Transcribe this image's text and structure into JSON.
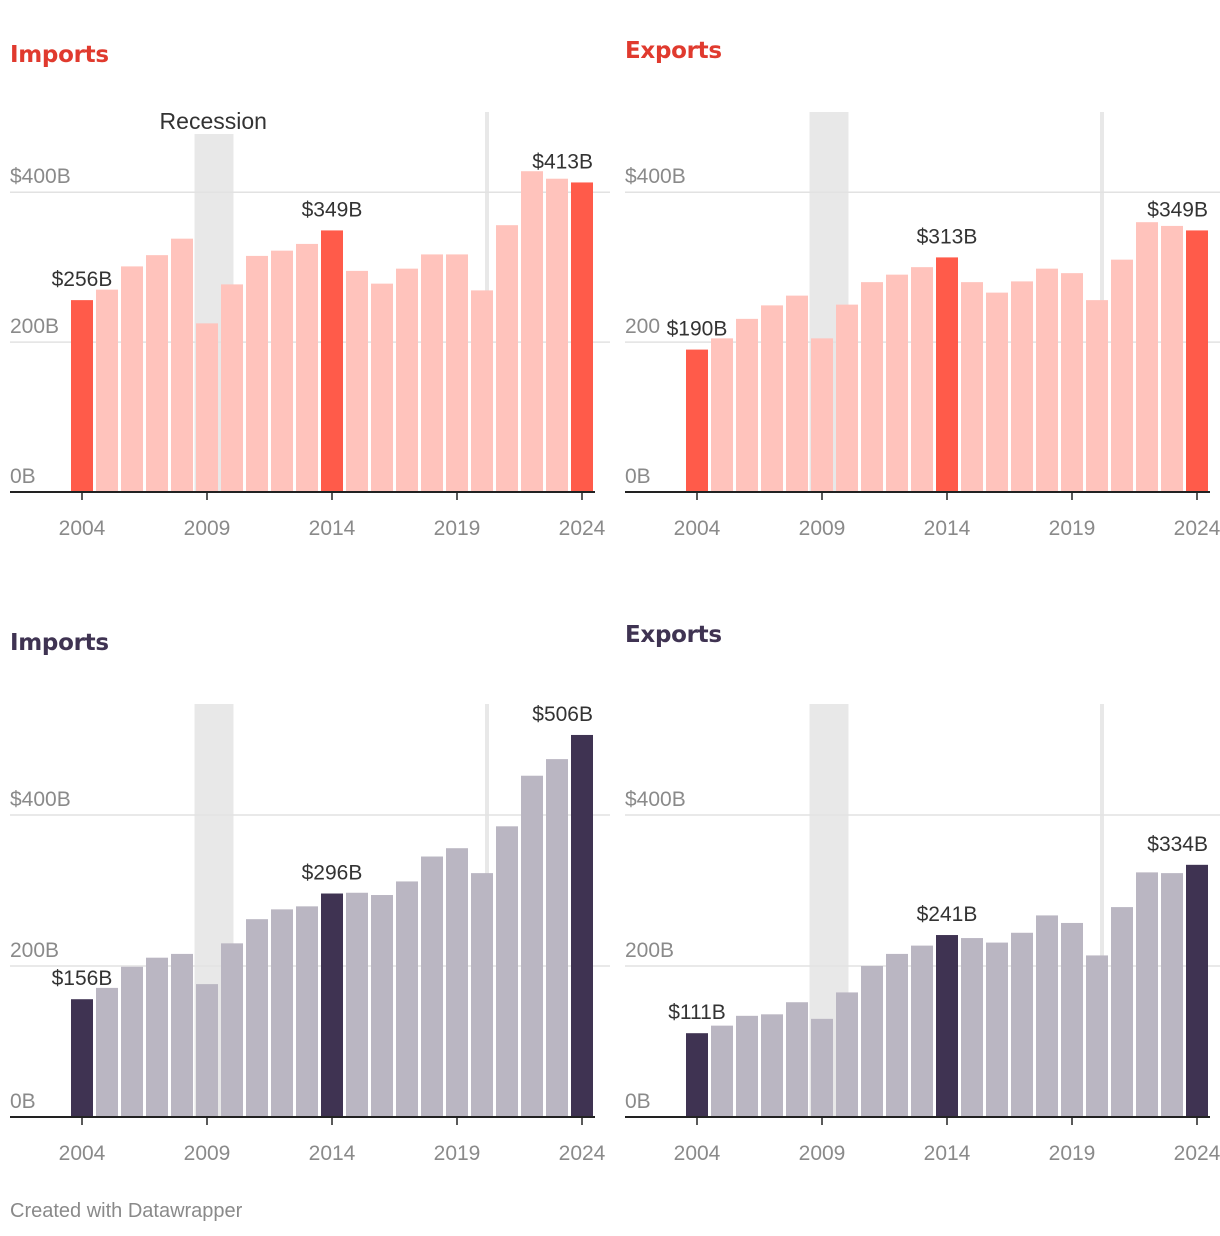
{
  "footer": "Created with Datawrapper",
  "colors": {
    "red_highlight": "#ff5b4a",
    "red_light": "#ffc3bc",
    "purple_highlight": "#3f3352",
    "purple_light": "#bab6c2",
    "red_title": "#e03a2e",
    "purple_title": "#3f3352",
    "recession_band": "#e8e8e8",
    "tick_label": "#8a8a8a",
    "value_label": "#333333"
  },
  "chart_data": [
    {
      "type": "bar",
      "title": "Imports",
      "theme": "red",
      "recession_label": "Recession",
      "x": [
        2004,
        2005,
        2006,
        2007,
        2008,
        2009,
        2010,
        2011,
        2012,
        2013,
        2014,
        2015,
        2016,
        2017,
        2018,
        2019,
        2020,
        2021,
        2022,
        2023,
        2024
      ],
      "values": [
        256,
        270,
        301,
        316,
        338,
        225,
        277,
        315,
        322,
        331,
        349,
        295,
        278,
        298,
        317,
        317,
        269,
        356,
        428,
        418,
        413
      ],
      "highlight_index": [
        0,
        10,
        20
      ],
      "value_labels": [
        {
          "index": 0,
          "text": "$256B"
        },
        {
          "index": 10,
          "text": "$349B"
        },
        {
          "index": 20,
          "text": "$413B"
        }
      ],
      "x_ticks": [
        "2004",
        "2009",
        "2014",
        "2019",
        "2024"
      ],
      "y_ticks": [
        "0B",
        "200B",
        "$400B"
      ],
      "y_tick_values": [
        0,
        200,
        400
      ],
      "ylim": [
        0,
        507
      ],
      "recession": [
        2008.5,
        2010
      ],
      "covid_line": 2020.2
    },
    {
      "type": "bar",
      "title": "Exports",
      "theme": "red",
      "recession_label": "",
      "x": [
        2004,
        2005,
        2006,
        2007,
        2008,
        2009,
        2010,
        2011,
        2012,
        2013,
        2014,
        2015,
        2016,
        2017,
        2018,
        2019,
        2020,
        2021,
        2022,
        2023,
        2024
      ],
      "values": [
        190,
        205,
        231,
        249,
        262,
        205,
        250,
        280,
        290,
        300,
        313,
        280,
        266,
        281,
        298,
        292,
        256,
        310,
        360,
        355,
        349
      ],
      "highlight_index": [
        0,
        10,
        20
      ],
      "value_labels": [
        {
          "index": 0,
          "text": "$190B"
        },
        {
          "index": 10,
          "text": "$313B"
        },
        {
          "index": 20,
          "text": "$349B"
        }
      ],
      "x_ticks": [
        "2004",
        "2009",
        "2014",
        "2019",
        "2024"
      ],
      "y_ticks": [
        "0B",
        "200",
        "$400B"
      ],
      "y_tick_values": [
        0,
        200,
        400
      ],
      "ylim": [
        0,
        507
      ],
      "recession": [
        2008.5,
        2010
      ],
      "covid_line": 2020.2
    },
    {
      "type": "bar",
      "title": "Imports",
      "theme": "purple",
      "recession_label": "",
      "x": [
        2004,
        2005,
        2006,
        2007,
        2008,
        2009,
        2010,
        2011,
        2012,
        2013,
        2014,
        2015,
        2016,
        2017,
        2018,
        2019,
        2020,
        2021,
        2022,
        2023,
        2024
      ],
      "values": [
        156,
        171,
        199,
        211,
        216,
        176,
        230,
        262,
        275,
        279,
        296,
        297,
        294,
        312,
        345,
        356,
        323,
        385,
        452,
        474,
        506
      ],
      "highlight_index": [
        0,
        10,
        20
      ],
      "value_labels": [
        {
          "index": 0,
          "text": "$156B"
        },
        {
          "index": 10,
          "text": "$296B"
        },
        {
          "index": 20,
          "text": "$506B"
        }
      ],
      "x_ticks": [
        "2004",
        "2009",
        "2014",
        "2019",
        "2024"
      ],
      "y_ticks": [
        "0B",
        "200B",
        "$400B"
      ],
      "y_tick_values": [
        0,
        200,
        400
      ],
      "ylim": [
        0,
        547
      ],
      "recession": [
        2008.5,
        2010
      ],
      "covid_line": 2020.2
    },
    {
      "type": "bar",
      "title": "Exports",
      "theme": "purple",
      "recession_label": "",
      "x": [
        2004,
        2005,
        2006,
        2007,
        2008,
        2009,
        2010,
        2011,
        2012,
        2013,
        2014,
        2015,
        2016,
        2017,
        2018,
        2019,
        2020,
        2021,
        2022,
        2023,
        2024
      ],
      "values": [
        111,
        121,
        134,
        136,
        152,
        130,
        165,
        200,
        216,
        227,
        241,
        237,
        231,
        244,
        267,
        257,
        214,
        278,
        324,
        323,
        334
      ],
      "highlight_index": [
        0,
        10,
        20
      ],
      "value_labels": [
        {
          "index": 0,
          "text": "$111B"
        },
        {
          "index": 10,
          "text": "$241B"
        },
        {
          "index": 20,
          "text": "$334B"
        }
      ],
      "x_ticks": [
        "2004",
        "2009",
        "2014",
        "2019",
        "2024"
      ],
      "y_ticks": [
        "0B",
        "200B",
        "$400B"
      ],
      "y_tick_values": [
        0,
        200,
        400
      ],
      "ylim": [
        0,
        547
      ],
      "recession": [
        2008.5,
        2010
      ],
      "covid_line": 2020.2
    }
  ]
}
